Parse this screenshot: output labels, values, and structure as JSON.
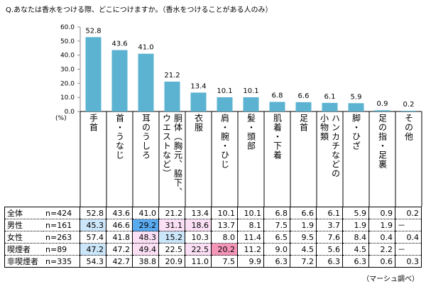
{
  "title": "Q.あなたは香水をつける際、どこにつけますか。（香水をつけることがある人のみ）",
  "unit_label": "(%)",
  "source": "（マーシュ調べ）",
  "chart_data": {
    "type": "bar",
    "title": "Q.あなたは香水をつける際、どこにつけますか。（香水をつけることがある人のみ）",
    "xlabel": "",
    "ylabel": "(%)",
    "ylim": [
      0,
      60
    ],
    "yticks": [
      "0.0",
      "10.0",
      "20.0",
      "30.0",
      "40.0",
      "50.0",
      "60.0"
    ],
    "grid": false,
    "bar_color": "#5bb3d1",
    "categories": [
      "手首",
      "首・うなじ",
      "耳のうしろ",
      "胴体（胸元、脇下、ウエストなど）",
      "衣服",
      "肩・腕・ひじ",
      "髪・頭部",
      "肌着・下着",
      "足首",
      "ハンカチなどの小物類",
      "脚・ひざ",
      "足の指・足裏",
      "その他"
    ],
    "category_columns": [
      [
        "手首"
      ],
      [
        "首・うなじ"
      ],
      [
        "耳のうしろ"
      ],
      [
        "胴体（胸元、脇下、",
        "ウエストなど）"
      ],
      [
        "衣服"
      ],
      [
        "肩・腕・ひじ"
      ],
      [
        "髪・頭部"
      ],
      [
        "肌着・下着"
      ],
      [
        "足首"
      ],
      [
        "ハンカチなどの",
        "小物類"
      ],
      [
        "脚・ひざ"
      ],
      [
        "足の指・足裏"
      ],
      [
        "その他"
      ]
    ],
    "values": [
      52.8,
      43.6,
      41.0,
      21.2,
      13.4,
      10.1,
      10.1,
      6.8,
      6.6,
      6.1,
      5.9,
      0.9,
      0.2
    ],
    "value_labels": [
      "52.8",
      "43.6",
      "41.0",
      "21.2",
      "13.4",
      "10.1",
      "10.1",
      "6.8",
      "6.6",
      "6.1",
      "5.9",
      "0.9",
      "0.2"
    ]
  },
  "table": {
    "rows": [
      {
        "group": "全体",
        "n": "n=424",
        "values": [
          "52.8",
          "43.6",
          "41.0",
          "21.2",
          "13.4",
          "10.1",
          "10.1",
          "6.8",
          "6.6",
          "6.1",
          "5.9",
          "0.9",
          "0.2"
        ],
        "highlights": [
          "",
          "",
          "",
          "",
          "",
          "",
          "",
          "",
          "",
          "",
          "",
          "",
          ""
        ]
      },
      {
        "group": "男性",
        "n": "n=161",
        "values": [
          "45.3",
          "46.6",
          "29.2",
          "31.1",
          "18.6",
          "13.7",
          "8.1",
          "7.5",
          "1.9",
          "3.7",
          "1.9",
          "1.9",
          "－"
        ],
        "highlights": [
          "blue1",
          "",
          "blue2",
          "pink1",
          "pink1",
          "",
          "",
          "",
          "",
          "",
          "",
          "",
          ""
        ]
      },
      {
        "group": "女性",
        "n": "n=263",
        "values": [
          "57.4",
          "41.8",
          "48.3",
          "15.2",
          "10.3",
          "8.0",
          "11.4",
          "6.5",
          "9.5",
          "7.6",
          "8.4",
          "0.4",
          "0.4"
        ],
        "highlights": [
          "",
          "",
          "pink1",
          "blue1",
          "",
          "",
          "",
          "",
          "",
          "",
          "",
          "",
          ""
        ]
      },
      {
        "group": "喫煙者",
        "n": "n=89",
        "values": [
          "47.2",
          "47.2",
          "49.4",
          "22.5",
          "22.5",
          "20.2",
          "11.2",
          "9.0",
          "4.5",
          "5.6",
          "4.5",
          "2.2",
          "－"
        ],
        "highlights": [
          "blue1",
          "",
          "pink1",
          "",
          "pink1",
          "pink2",
          "",
          "",
          "",
          "",
          "",
          "",
          ""
        ]
      },
      {
        "group": "非喫煙者",
        "n": "n=335",
        "values": [
          "54.3",
          "42.7",
          "38.8",
          "20.9",
          "11.0",
          "7.5",
          "9.9",
          "6.3",
          "7.2",
          "6.3",
          "6.3",
          "0.6",
          "0.3"
        ],
        "highlights": [
          "",
          "",
          "",
          "",
          "",
          "",
          "",
          "",
          "",
          "",
          "",
          "",
          ""
        ]
      }
    ]
  }
}
